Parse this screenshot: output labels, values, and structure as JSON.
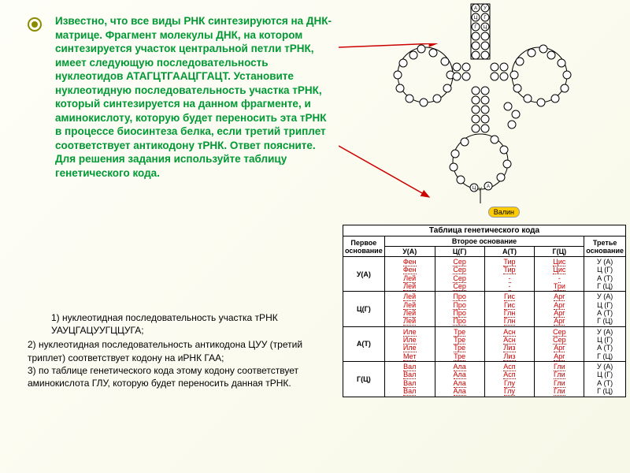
{
  "mainText": "Известно, что все виды РНК синтезируются на ДНК-матрице. Фрагмент молекулы ДНК, на котором синтезируется участок центральной петли тРНК, имеет следующую последовательность нуклеотидов АТАГЦТГААЦГГАЦТ. Установите нуклеотидную последовательность участка тРНК, который синтезируется на данном фрагменте, и аминокислоту, которую будет переносить эта тРНК в процессе биосинтеза белка, если третий триплет соответствует антикодону тРНК. Ответ поясните. Для решения задания используйте таблицу генетического кода.",
  "answers": {
    "a1": "1)   нуклеотидная последовательность участка тРНК УАУЦГАЦУУГЦЦУГА;",
    "a2": "2) нуклеотидная последовательность антикодона ЦУУ (третий триплет) соответствует кодону на иРНК   ГАА;",
    "a3": "3) по таблице генетического кода этому кодону соответствует аминокислота ГЛУ, которую будет переносить данная тРНК."
  },
  "diagram": {
    "valin": "Валин",
    "arrow_color": "#cc0000",
    "circle_stroke": "#000000",
    "circle_fill": "#ffffff"
  },
  "table": {
    "title": "Таблица генетического кода",
    "col1": "Первое основание",
    "col2": "Второе основание",
    "col3": "Третье основание",
    "headers": [
      "У(А)",
      "Ц(Г)",
      "А(Т)",
      "Г(Ц)"
    ],
    "rows": [
      {
        "base": "У(А)",
        "u": [
          "Фен",
          "Фен",
          "Лей",
          "Лей"
        ],
        "c": [
          "Сер",
          "Сер",
          "Сер",
          "Сер"
        ],
        "a": [
          "Тир",
          "Тир",
          "-",
          "-"
        ],
        "g": [
          "Цис",
          "Цис",
          "-",
          "Три"
        ],
        "third": [
          "У (А)",
          "Ц (Г)",
          "А (Т)",
          "Г (Ц)"
        ]
      },
      {
        "base": "Ц(Г)",
        "u": [
          "Лей",
          "Лей",
          "Лей",
          "Лей"
        ],
        "c": [
          "Про",
          "Про",
          "Про",
          "Про"
        ],
        "a": [
          "Гис",
          "Гис",
          "Глн",
          "Глн"
        ],
        "g": [
          "Арг",
          "Арг",
          "Арг",
          "Арг"
        ],
        "third": [
          "У (А)",
          "Ц (Г)",
          "А (Т)",
          "Г (Ц)"
        ]
      },
      {
        "base": "А(Т)",
        "u": [
          "Иле",
          "Иле",
          "Иле",
          "Мет"
        ],
        "c": [
          "Тре",
          "Тре",
          "Тре",
          "Тре"
        ],
        "a": [
          "Асн",
          "Асн",
          "Лиз",
          "Лиз"
        ],
        "g": [
          "Сер",
          "Сер",
          "Арг",
          "Арг"
        ],
        "third": [
          "У (А)",
          "Ц (Г)",
          "А (Т)",
          "Г (Ц)"
        ]
      },
      {
        "base": "Г(Ц)",
        "u": [
          "Вал",
          "Вал",
          "Вал",
          "Вал"
        ],
        "c": [
          "Ала",
          "Ала",
          "Ала",
          "Ала"
        ],
        "a": [
          "Асп",
          "Асп",
          "Глу",
          "Глу"
        ],
        "g": [
          "Гли",
          "Гли",
          "Гли",
          "Гли"
        ],
        "third": [
          "У (А)",
          "Ц (Г)",
          "А (Т)",
          "Г (Ц)"
        ]
      }
    ]
  },
  "colors": {
    "text_green": "#009933",
    "bullet": "#8b8b00",
    "red": "#cc0000",
    "bg1": "#fefef8",
    "bg2": "#f8f8e8"
  }
}
